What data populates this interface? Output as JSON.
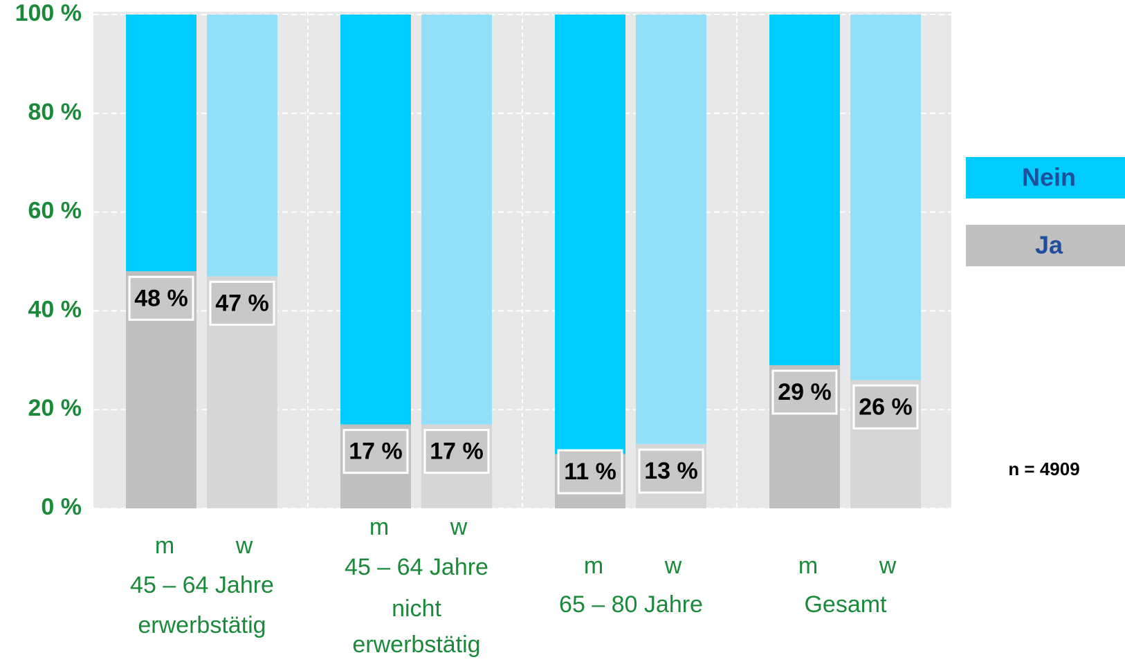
{
  "chart_data": {
    "type": "stacked_bar",
    "categories": [
      "m",
      "w",
      "m",
      "w",
      "m",
      "w",
      "m",
      "w"
    ],
    "groups": [
      [
        "45 – 64 Jahre",
        "erwerbstätig"
      ],
      [
        "45 – 64  Jahre",
        "nicht",
        "erwerbstätig"
      ],
      [
        "65 – 80 Jahre"
      ],
      [
        "Gesamt"
      ]
    ],
    "series": [
      {
        "name": "Ja",
        "colors": [
          "#c0c0c0",
          "#d6d6d6",
          "#c0c0c0",
          "#d6d6d6",
          "#c0c0c0",
          "#d6d6d6",
          "#c0c0c0",
          "#d6d6d6"
        ],
        "values": [
          48,
          47,
          17,
          17,
          11,
          13,
          29,
          26
        ],
        "value_labels": [
          "48 %",
          "47 %",
          "17 %",
          "17 %",
          "11 %",
          "13 %",
          "29 %",
          "26 %"
        ]
      },
      {
        "name": "Nein",
        "colors": [
          "#00ccff",
          "#8fe0f8",
          "#00ccff",
          "#8fe0f8",
          "#00ccff",
          "#8fe0f8",
          "#00ccff",
          "#8fe0f8"
        ],
        "values": [
          52,
          53,
          83,
          83,
          89,
          87,
          71,
          74
        ]
      }
    ],
    "ylim": [
      0,
      100
    ],
    "yticks": [
      {
        "value": 0,
        "label": "0 %"
      },
      {
        "value": 20,
        "label": "20 %"
      },
      {
        "value": 40,
        "label": "40 %"
      },
      {
        "value": 60,
        "label": "60 %"
      },
      {
        "value": 80,
        "label": "80 %"
      },
      {
        "value": 100,
        "label": "100 %"
      }
    ],
    "grid": true,
    "legend": "right",
    "annotation": "n = 4909"
  }
}
